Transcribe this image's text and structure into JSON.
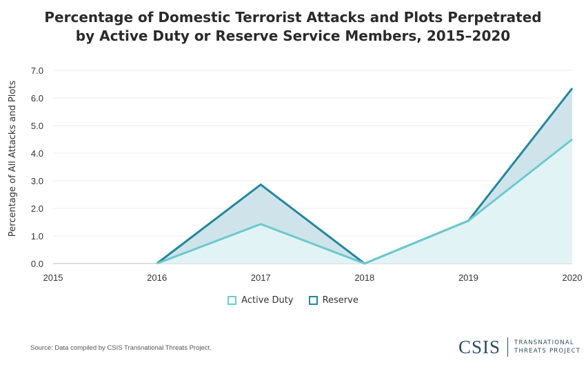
{
  "title_lines": [
    "Percentage of Domestic Terrorist Attacks and Plots Perpetrated",
    "by Active Duty or Reserve Service Members, 2015–2020"
  ],
  "source": "Source: Data compiled by CSIS Transnational Threats Project.",
  "logo": {
    "main": "CSIS",
    "sub_line1": "TRANSNATIONAL",
    "sub_line2": "THREATS PROJECT"
  },
  "legend": [
    {
      "label": "Active Duty",
      "color": "#6cc9cd"
    },
    {
      "label": "Reserve",
      "color": "#21869b"
    }
  ],
  "chart_data": {
    "type": "area",
    "title": "Percentage of Domestic Terrorist Attacks and Plots Perpetrated by Active Duty or Reserve Service Members, 2015–2020",
    "xlabel": "",
    "ylabel": "Percentage of All Attacks and Plots",
    "x": [
      "2015",
      "2016",
      "2017",
      "2018",
      "2019",
      "2020"
    ],
    "yticks": [
      "0.0",
      "1.0",
      "2.0",
      "3.0",
      "4.0",
      "5.0",
      "6.0",
      "7.0"
    ],
    "ylim": [
      0,
      7
    ],
    "series": [
      {
        "name": "Active Duty",
        "values": [
          null,
          0,
          1.43,
          0,
          1.55,
          4.5
        ],
        "line_color": "#6cc9cd",
        "fill_color": "#e2f3f6"
      },
      {
        "name": "Reserve",
        "values": [
          null,
          0,
          2.86,
          0,
          1.55,
          6.35
        ],
        "line_color": "#21869b",
        "fill_color": "#cfe3ea"
      }
    ],
    "grid": true,
    "legend_position": "bottom"
  }
}
